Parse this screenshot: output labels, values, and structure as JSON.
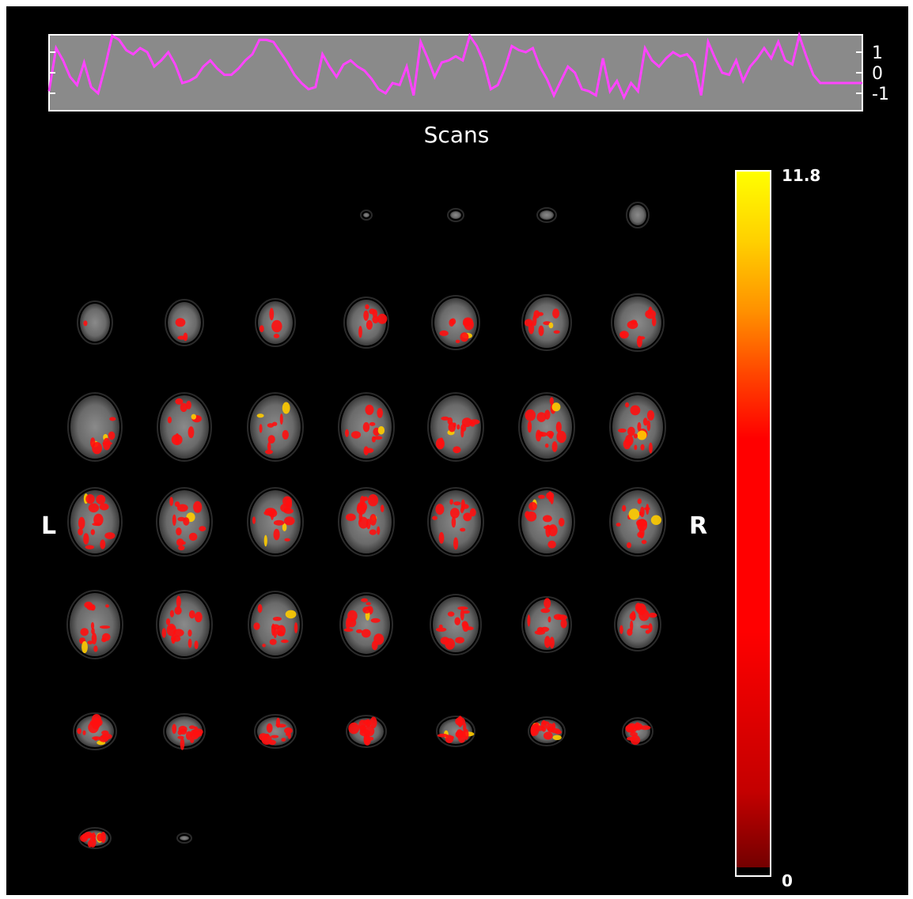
{
  "figure": {
    "background": "#000000",
    "timecourse": {
      "xlabel": "Scans",
      "ticks": [
        "1",
        "0",
        "-1"
      ],
      "line_color": "#ff44ff",
      "panel_color": "#8a8a8a",
      "values": [
        -0.9,
        1.2,
        0.6,
        -0.2,
        -0.6,
        0.5,
        -0.7,
        -1.0,
        0.3,
        1.8,
        1.6,
        1.1,
        0.9,
        1.2,
        1.0,
        0.3,
        0.6,
        1.0,
        0.4,
        -0.5,
        -0.4,
        -0.2,
        0.3,
        0.6,
        0.2,
        -0.1,
        -0.1,
        0.2,
        0.6,
        0.9,
        1.6,
        1.6,
        1.5,
        1.0,
        0.5,
        -0.1,
        -0.5,
        -0.8,
        -0.7,
        0.9,
        0.3,
        -0.2,
        0.4,
        0.6,
        0.3,
        0.1,
        -0.3,
        -0.8,
        -1.0,
        -0.5,
        -0.6,
        0.3,
        -1.1,
        1.5,
        0.7,
        -0.2,
        0.5,
        0.6,
        0.8,
        0.6,
        1.8,
        1.3,
        0.5,
        -0.8,
        -0.6,
        0.2,
        1.3,
        1.1,
        1.0,
        1.2,
        0.3,
        -0.3,
        -1.1,
        -0.4,
        0.3,
        0.0,
        -0.8,
        -0.9,
        -1.1,
        0.7,
        -0.9,
        -0.4,
        -1.2,
        -0.5,
        -0.9,
        1.2,
        0.6,
        0.3,
        0.7,
        1.0,
        0.8,
        0.9,
        0.5,
        -1.1,
        1.5,
        0.7,
        0.0,
        -0.1,
        0.6,
        -0.4,
        0.3,
        0.7,
        1.2,
        0.7,
        1.5,
        0.6,
        0.4,
        1.9,
        0.8,
        -0.1,
        -0.5,
        -0.5,
        -0.5,
        -0.5,
        -0.5,
        -0.5,
        -0.5
      ]
    },
    "slices": {
      "orientation_left": "L",
      "orientation_right": "R",
      "rows": 7,
      "cols": 7
    },
    "colorbar": {
      "max_label": "11.8",
      "min_label": "0",
      "colormap": "hot",
      "stops": [
        "#7a0000",
        "#c40000",
        "#ff0000",
        "#ff0000",
        "#ff3c00",
        "#ff8c00",
        "#ffc800",
        "#ffff00"
      ]
    }
  }
}
